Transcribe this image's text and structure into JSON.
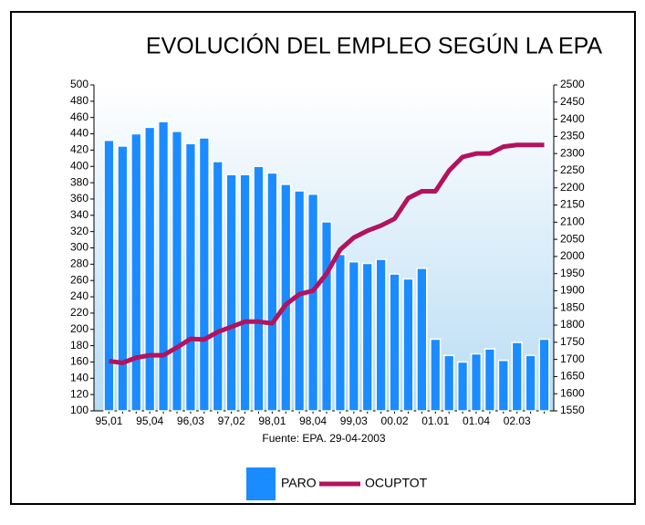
{
  "chart_data": {
    "type": "bar_line",
    "title": "EVOLUCIÓN DEL EMPLEO SEGÚN LA EPA",
    "subtitle": "Fuente: EPA. 29-04-2003",
    "categories": [
      "95,01",
      null,
      null,
      "95,04",
      null,
      null,
      "96,03",
      null,
      null,
      "97,02",
      null,
      null,
      "98,01",
      null,
      null,
      "98,04",
      null,
      null,
      "99,03",
      null,
      null,
      "00.02",
      null,
      null,
      "01.01",
      null,
      null,
      "01.04",
      null,
      null,
      "02.03",
      null,
      null
    ],
    "series": [
      {
        "name": "PARO",
        "color": "#1a8cff",
        "axis": "y",
        "kind": "bar",
        "values": [
          432,
          425,
          440,
          448,
          455,
          443,
          428,
          435,
          406,
          390,
          390,
          400,
          392,
          378,
          370,
          366,
          332,
          292,
          283,
          281,
          286,
          268,
          262,
          275,
          188,
          168,
          160,
          170,
          176,
          162,
          184,
          168,
          188
        ]
      },
      {
        "name": "OCUPTOT",
        "color": "#b3125f",
        "axis": "y2",
        "kind": "line",
        "values": [
          1695,
          1690,
          1705,
          1712,
          1712,
          1735,
          1760,
          1758,
          1780,
          1795,
          1810,
          1810,
          1805,
          1860,
          1890,
          1900,
          1950,
          2020,
          2055,
          2075,
          2090,
          2110,
          2170,
          2190,
          2190,
          2250,
          2290,
          2300,
          2300,
          2320,
          2325,
          2325,
          2325
        ]
      }
    ],
    "ylim": [
      100,
      500
    ],
    "yticks": [
      100,
      120,
      140,
      160,
      180,
      200,
      220,
      240,
      260,
      280,
      300,
      320,
      340,
      360,
      380,
      400,
      420,
      440,
      460,
      480,
      500
    ],
    "y2lim": [
      1550,
      2500
    ],
    "y2ticks": [
      1550,
      1600,
      1650,
      1700,
      1750,
      1800,
      1850,
      1900,
      1950,
      2000,
      2050,
      2100,
      2150,
      2200,
      2250,
      2300,
      2350,
      2400,
      2450,
      2500
    ],
    "legend": "bottom"
  }
}
